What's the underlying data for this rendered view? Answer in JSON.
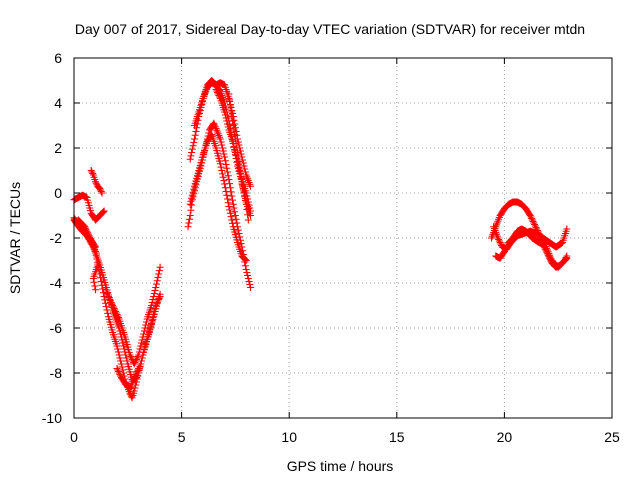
{
  "chart_data": {
    "type": "scatter",
    "title": "Day 007 of 2017, Sidereal Day-to-day VTEC variation (SDTVAR) for receiver mtdn",
    "xlabel": "GPS time / hours",
    "ylabel": "SDTVAR / TECUs",
    "xlim": [
      0,
      25
    ],
    "ylim": [
      -10,
      6
    ],
    "xticks": [
      0,
      5,
      10,
      15,
      20,
      25
    ],
    "yticks": [
      -10,
      -8,
      -6,
      -4,
      -2,
      0,
      2,
      4,
      6
    ],
    "xtick_labels": [
      "0",
      "5",
      "10",
      "15",
      "20",
      "25"
    ],
    "ytick_labels": [
      "-10",
      "-8",
      "-6",
      "-4",
      "-2",
      "0",
      "2",
      "4",
      "6"
    ],
    "grid": true,
    "marker": "+",
    "color": "#ff0000",
    "series": [
      {
        "tracks": [
          [
            [
              0.0,
              -1.2
            ],
            [
              0.3,
              -1.6
            ],
            [
              0.6,
              -1.9
            ],
            [
              0.9,
              -2.4
            ],
            [
              1.2,
              -3.2
            ],
            [
              1.5,
              -4.2
            ],
            [
              1.8,
              -5.2
            ],
            [
              2.1,
              -6.0
            ],
            [
              2.3,
              -6.8
            ],
            [
              2.5,
              -7.6
            ],
            [
              2.7,
              -8.3
            ],
            [
              2.9,
              -8.2
            ],
            [
              3.1,
              -7.6
            ],
            [
              3.3,
              -6.8
            ],
            [
              3.5,
              -6.2
            ],
            [
              3.7,
              -5.5
            ],
            [
              3.9,
              -4.8
            ],
            [
              4.0,
              -4.5
            ]
          ],
          [
            [
              0.0,
              -1.1
            ],
            [
              0.2,
              -1.4
            ],
            [
              0.5,
              -1.8
            ],
            [
              0.8,
              -2.1
            ],
            [
              1.0,
              -2.6
            ],
            [
              1.2,
              -3.6
            ],
            [
              1.4,
              -4.6
            ],
            [
              1.6,
              -5.5
            ],
            [
              1.8,
              -6.2
            ],
            [
              2.0,
              -6.8
            ],
            [
              2.2,
              -7.6
            ],
            [
              2.4,
              -8.4
            ],
            [
              2.6,
              -8.9
            ],
            [
              2.7,
              -9.1
            ],
            [
              2.8,
              -8.8
            ],
            [
              3.0,
              -8.0
            ],
            [
              3.2,
              -7.2
            ],
            [
              3.4,
              -6.5
            ],
            [
              3.6,
              -5.8
            ],
            [
              3.8,
              -5.0
            ],
            [
              4.0,
              -4.6
            ]
          ],
          [
            [
              0.0,
              -0.3
            ],
            [
              0.2,
              -0.2
            ],
            [
              0.4,
              -0.1
            ],
            [
              0.6,
              -0.2
            ],
            [
              0.8,
              -0.9
            ],
            [
              1.0,
              -1.2
            ],
            [
              1.2,
              -1.0
            ],
            [
              1.4,
              -0.8
            ]
          ],
          [
            [
              0.8,
              1.0
            ],
            [
              0.9,
              0.8
            ],
            [
              1.0,
              0.5
            ],
            [
              1.1,
              0.3
            ],
            [
              1.2,
              0.2
            ],
            [
              1.3,
              0.0
            ]
          ],
          [
            [
              0.2,
              -1.2
            ],
            [
              0.5,
              -1.5
            ],
            [
              0.8,
              -2.1
            ],
            [
              1.0,
              -2.4
            ],
            [
              1.1,
              -3.2
            ],
            [
              0.9,
              -3.8
            ],
            [
              1.0,
              -4.3
            ]
          ],
          [
            [
              1.5,
              -4.4
            ],
            [
              1.8,
              -5.0
            ],
            [
              2.1,
              -5.6
            ],
            [
              2.4,
              -6.5
            ],
            [
              2.6,
              -7.2
            ],
            [
              2.8,
              -7.6
            ],
            [
              3.0,
              -7.2
            ],
            [
              3.2,
              -6.4
            ],
            [
              3.4,
              -5.6
            ],
            [
              3.6,
              -5.0
            ],
            [
              3.8,
              -4.2
            ],
            [
              4.0,
              -3.3
            ]
          ],
          [
            [
              2.0,
              -7.8
            ],
            [
              2.2,
              -8.2
            ],
            [
              2.4,
              -8.5
            ],
            [
              2.6,
              -8.7
            ],
            [
              2.8,
              -8.2
            ],
            [
              3.0,
              -7.8
            ]
          ],
          [
            [
              5.3,
              -1.5
            ],
            [
              5.4,
              -1.0
            ],
            [
              5.5,
              -0.3
            ],
            [
              5.7,
              0.5
            ],
            [
              5.9,
              1.2
            ],
            [
              6.1,
              2.0
            ],
            [
              6.3,
              2.8
            ],
            [
              6.5,
              3.1
            ],
            [
              6.8,
              2.4
            ],
            [
              7.0,
              1.6
            ],
            [
              7.2,
              0.6
            ],
            [
              7.4,
              -0.5
            ],
            [
              7.6,
              -1.5
            ],
            [
              7.8,
              -2.4
            ],
            [
              8.0,
              -3.4
            ],
            [
              8.2,
              -4.2
            ]
          ],
          [
            [
              5.4,
              -0.5
            ],
            [
              5.6,
              0.3
            ],
            [
              5.8,
              1.0
            ],
            [
              6.0,
              1.7
            ],
            [
              6.2,
              2.3
            ],
            [
              6.4,
              2.6
            ],
            [
              6.6,
              2.0
            ],
            [
              6.8,
              1.3
            ],
            [
              7.0,
              0.4
            ],
            [
              7.2,
              -0.6
            ],
            [
              7.4,
              -1.5
            ],
            [
              7.6,
              -2.2
            ],
            [
              7.8,
              -2.8
            ],
            [
              8.0,
              -3.0
            ]
          ],
          [
            [
              5.4,
              1.5
            ],
            [
              5.6,
              2.4
            ],
            [
              5.8,
              3.4
            ],
            [
              6.0,
              4.2
            ],
            [
              6.2,
              4.8
            ],
            [
              6.4,
              5.0
            ],
            [
              6.6,
              4.8
            ],
            [
              6.8,
              4.5
            ],
            [
              7.0,
              4.0
            ],
            [
              7.2,
              3.2
            ],
            [
              7.4,
              2.2
            ],
            [
              7.6,
              1.4
            ],
            [
              7.8,
              0.6
            ],
            [
              8.0,
              0.0
            ],
            [
              8.2,
              -0.8
            ]
          ],
          [
            [
              5.6,
              3.0
            ],
            [
              5.8,
              3.6
            ],
            [
              6.0,
              4.2
            ],
            [
              6.2,
              4.7
            ],
            [
              6.4,
              4.9
            ],
            [
              6.6,
              4.8
            ],
            [
              6.8,
              4.9
            ],
            [
              7.0,
              4.8
            ],
            [
              7.2,
              4.2
            ],
            [
              7.4,
              3.4
            ],
            [
              7.6,
              2.4
            ],
            [
              7.8,
              1.6
            ],
            [
              8.0,
              0.8
            ],
            [
              8.2,
              0.3
            ]
          ],
          [
            [
              6.6,
              4.6
            ],
            [
              6.8,
              4.2
            ],
            [
              7.0,
              3.6
            ],
            [
              7.2,
              2.8
            ],
            [
              7.4,
              2.2
            ],
            [
              7.6,
              1.2
            ],
            [
              7.8,
              0.5
            ],
            [
              8.0,
              -0.4
            ],
            [
              8.2,
              -1.0
            ]
          ],
          [
            [
              7.2,
              4.4
            ],
            [
              7.3,
              3.6
            ],
            [
              7.4,
              3.0
            ],
            [
              7.5,
              2.4
            ],
            [
              7.6,
              1.8
            ],
            [
              7.7,
              1.2
            ],
            [
              7.8,
              0.4
            ],
            [
              7.9,
              0.0
            ],
            [
              8.0,
              -0.5
            ],
            [
              8.1,
              -1.2
            ]
          ],
          [
            [
              19.5,
              -1.5
            ],
            [
              19.7,
              -2.0
            ],
            [
              19.9,
              -2.4
            ],
            [
              20.1,
              -2.5
            ],
            [
              20.3,
              -2.2
            ],
            [
              20.6,
              -1.9
            ],
            [
              20.9,
              -1.8
            ],
            [
              21.2,
              -1.7
            ],
            [
              21.5,
              -1.8
            ],
            [
              21.8,
              -2.0
            ],
            [
              22.1,
              -2.2
            ],
            [
              22.4,
              -2.4
            ],
            [
              22.7,
              -2.2
            ],
            [
              22.9,
              -1.6
            ]
          ],
          [
            [
              19.4,
              -2.0
            ],
            [
              19.6,
              -1.5
            ],
            [
              19.8,
              -1.0
            ],
            [
              20.0,
              -0.7
            ],
            [
              20.2,
              -0.5
            ],
            [
              20.4,
              -0.4
            ],
            [
              20.6,
              -0.4
            ],
            [
              20.8,
              -0.5
            ],
            [
              21.0,
              -0.7
            ],
            [
              21.2,
              -1.0
            ],
            [
              21.4,
              -1.4
            ],
            [
              21.6,
              -1.8
            ],
            [
              21.8,
              -2.3
            ],
            [
              22.0,
              -2.7
            ],
            [
              22.2,
              -3.1
            ],
            [
              22.4,
              -3.3
            ],
            [
              22.6,
              -3.2
            ],
            [
              22.8,
              -3.0
            ],
            [
              22.9,
              -2.8
            ]
          ],
          [
            [
              19.6,
              -2.8
            ],
            [
              19.8,
              -2.9
            ],
            [
              20.0,
              -2.6
            ],
            [
              20.2,
              -2.2
            ],
            [
              20.4,
              -2.0
            ],
            [
              20.6,
              -1.7
            ],
            [
              20.8,
              -1.6
            ],
            [
              21.0,
              -1.7
            ],
            [
              21.3,
              -2.0
            ],
            [
              21.6,
              -2.2
            ],
            [
              21.9,
              -2.3
            ],
            [
              22.2,
              -3.0
            ],
            [
              22.5,
              -3.3
            ],
            [
              22.7,
              -3.1
            ],
            [
              22.9,
              -2.9
            ]
          ]
        ]
      }
    ]
  }
}
